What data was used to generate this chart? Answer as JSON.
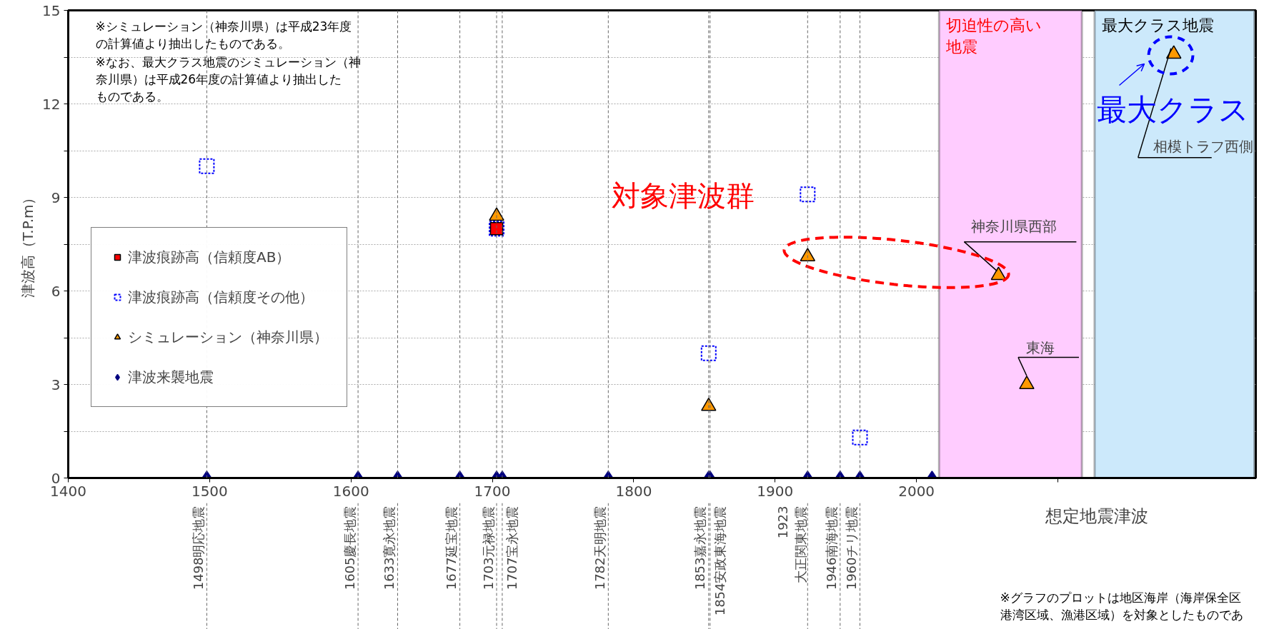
{
  "chart_data": {
    "type": "scatter",
    "ylabel": "津波高（T.P.m）",
    "xlabel": "想定地震津波",
    "xlim": [
      1400,
      2240
    ],
    "ylim": [
      0,
      15
    ],
    "xticks": [
      1400,
      1500,
      1600,
      1700,
      1800,
      1900,
      2000,
      {
        "value": 2100,
        "label": null
      }
    ],
    "yticks": [
      0,
      {
        "value": 1.5,
        "label": null
      },
      3,
      {
        "value": 4.5,
        "label": null
      },
      6,
      {
        "value": 7.5,
        "label": null
      },
      9,
      {
        "value": 10.5,
        "label": null
      },
      12,
      {
        "value": 13.5,
        "label": null
      },
      15
    ],
    "grid": "y",
    "legend": "left",
    "series": [
      {
        "name": "津波痕跡高（信頼度AB）",
        "color": "#ff0000",
        "marker": "square",
        "x": [
          1703
        ],
        "values": [
          8.0
        ]
      },
      {
        "name": "津波痕跡高（信頼度その他）",
        "color": "#0000ff",
        "marker": "square",
        "line_style": "dashed",
        "x": [
          1498,
          1703,
          1853,
          1923,
          1960
        ],
        "values": [
          10.0,
          8.0,
          4.0,
          9.1,
          1.3
        ]
      },
      {
        "name": "シミュレーション（神奈川県）",
        "color": "#ff9900",
        "marker": "triangle",
        "x": [
          1703,
          1853,
          1923,
          2058,
          2078,
          2182
        ],
        "values": [
          8.4,
          2.3,
          7.1,
          6.5,
          3.0,
          13.6
        ]
      },
      {
        "name": "津波来襲地震",
        "color": "#000080",
        "marker": "diamond",
        "x": [
          1498,
          1605,
          1633,
          1677,
          1703,
          1707,
          1782,
          1853,
          1854,
          1923,
          1946,
          1960,
          2011
        ],
        "values": [
          0,
          0,
          0,
          0,
          0,
          0,
          0,
          0,
          0,
          0,
          0,
          0,
          0
        ]
      }
    ],
    "bands": [
      {
        "axis": "x",
        "from": 2016,
        "to": 2117,
        "label": "切迫性の高い地震",
        "color": "#ffccff"
      },
      {
        "axis": "x",
        "from": 2126,
        "to": 2239,
        "label": "最大クラス地震",
        "color": "#cce9fb"
      }
    ],
    "ref_lines": [
      {
        "axis": "x",
        "value": 1498,
        "label": "1498明応地震"
      },
      {
        "axis": "x",
        "value": 1605,
        "label": "1605慶長地震"
      },
      {
        "axis": "x",
        "value": 1633,
        "label": "1633寛永地震"
      },
      {
        "axis": "x",
        "value": 1677,
        "label": "1677延宝地震"
      },
      {
        "axis": "x",
        "value": 1703,
        "label": "1703元禄地震"
      },
      {
        "axis": "x",
        "value": 1707,
        "label": "1707宝永地震"
      },
      {
        "axis": "x",
        "value": 1782,
        "label": "1782天明地震"
      },
      {
        "axis": "x",
        "value": 1853,
        "label": "1853嘉永地震"
      },
      {
        "axis": "x",
        "value": 1854,
        "label": "1854安政東海地震"
      },
      {
        "axis": "x",
        "value": 1923,
        "label": "1923\n大正関東地震"
      },
      {
        "axis": "x",
        "value": 1946,
        "label": "1946南海地震"
      },
      {
        "axis": "x",
        "value": 1960,
        "label": "1960チリ地震"
      }
    ],
    "annotations": [
      "※シミュレーション（神奈川県）は平成23年度の計算値より抽出したものである。",
      "※なお、最大クラス地震のシミュレーション（神奈川県）は平成26年度の計算値より抽出したものである。",
      "対象津波群",
      "最大クラス",
      {
        "text": "神奈川県西部",
        "x": 2058,
        "y": 6.5
      },
      {
        "text": "東海",
        "x": 2078,
        "y": 3.0
      },
      {
        "text": "相模トラフ西側",
        "x": 2182,
        "y": 13.6
      },
      "※グラフのプロットは地区海岸（海岸保全区港湾区域、漁港区域）を対象としたものであ"
    ]
  }
}
